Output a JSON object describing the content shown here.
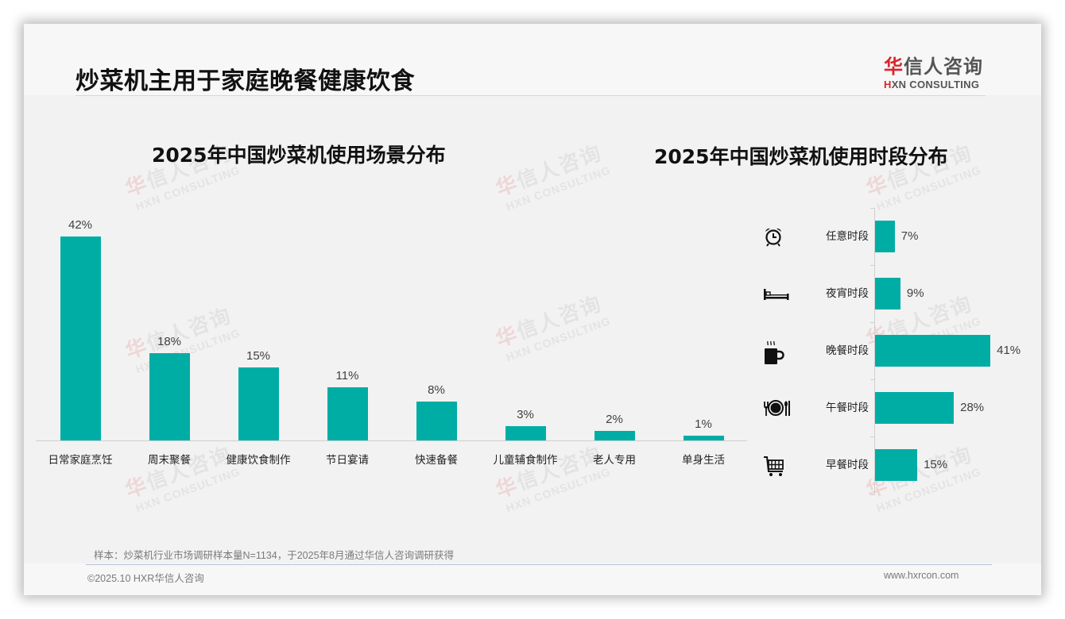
{
  "page": {
    "title": "炒菜机主用于家庭晚餐健康饮食"
  },
  "logo": {
    "cn_red": "华",
    "cn_rest": "信人咨询",
    "en_red": "H",
    "en_rest": "XN CONSULTING"
  },
  "watermark": {
    "cn_red": "华",
    "cn_rest": "信人咨询",
    "en": "HXN CONSULTING"
  },
  "colors": {
    "bar": "#00ada5",
    "logo_red": "#d7262c",
    "text_dark": "#111111",
    "text_muted": "#7a7a7a"
  },
  "chart_data": [
    {
      "type": "bar",
      "title": "2025年中国炒菜机使用场景分布",
      "categories": [
        "日常家庭烹饪",
        "周末聚餐",
        "健康饮食制作",
        "节日宴请",
        "快速备餐",
        "儿童辅食制作",
        "老人专用",
        "单身生活"
      ],
      "values": [
        42,
        18,
        15,
        11,
        8,
        3,
        2,
        1
      ],
      "labels": [
        "42%",
        "18%",
        "15%",
        "11%",
        "8%",
        "3%",
        "2%",
        "1%"
      ],
      "xlabel": "",
      "ylabel": "",
      "unit": "%",
      "grid": false,
      "legend": null
    },
    {
      "type": "bar",
      "orientation": "horizontal",
      "title": "2025年中国炒菜机使用时段分布",
      "categories": [
        "任意时段",
        "夜宵时段",
        "晚餐时段",
        "午餐时段",
        "早餐时段"
      ],
      "values": [
        7,
        9,
        41,
        28,
        15
      ],
      "labels": [
        "7%",
        "9%",
        "41%",
        "28%",
        "15%"
      ],
      "icons": [
        "alarm-clock-icon",
        "bed-icon",
        "hot-coffee-cup-icon",
        "plate-cutlery-icon",
        "shopping-cart-icon"
      ],
      "xlabel": "",
      "ylabel": "",
      "unit": "%",
      "grid": false,
      "legend": null
    }
  ],
  "footer": {
    "note": "样本：炒菜机行业市场调研样本量N=1134，于2025年8月通过华信人咨询调研获得",
    "copyright": "©2025.10 HXR华信人咨询",
    "website": "www.hxrcon.com"
  }
}
